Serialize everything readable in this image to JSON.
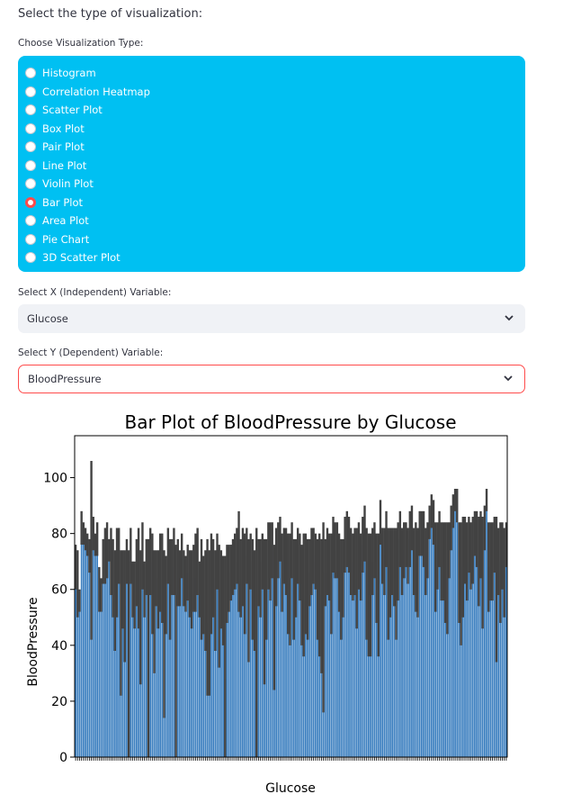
{
  "header": {
    "title": "Select the type of visualization:"
  },
  "viz_type": {
    "label": "Choose Visualization Type:",
    "options": [
      "Histogram",
      "Correlation Heatmap",
      "Scatter Plot",
      "Box Plot",
      "Pair Plot",
      "Line Plot",
      "Violin Plot",
      "Bar Plot",
      "Area Plot",
      "Pie Chart",
      "3D Scatter Plot"
    ],
    "selected": "Bar Plot"
  },
  "x_select": {
    "label": "Select X (Independent) Variable:",
    "value": "Glucose"
  },
  "y_select": {
    "label": "Select Y (Dependent) Variable:",
    "value": "BloodPressure"
  },
  "colors": {
    "panel": "#00c0f2",
    "accent": "#ff4b4b",
    "bar": "#3a7ebf",
    "errbar": "#424242"
  },
  "chart_data": {
    "type": "bar",
    "title": "Bar Plot of BloodPressure by Glucose",
    "xlabel": "Glucose",
    "ylabel": "BloodPressure",
    "ylim": [
      0,
      115
    ],
    "yticks": [
      0,
      20,
      40,
      60,
      80,
      100
    ],
    "values": [
      68,
      62,
      56,
      82,
      80,
      78,
      76,
      72,
      74,
      80,
      76,
      78,
      60,
      58,
      70,
      72,
      74,
      74,
      70,
      64,
      56,
      66,
      72,
      48,
      60,
      54,
      70,
      34,
      72,
      60,
      58,
      66,
      64,
      50,
      72,
      60,
      68,
      36,
      70,
      62,
      52,
      64,
      60,
      66,
      64,
      44,
      58,
      72,
      60,
      68,
      70,
      30,
      66,
      64,
      72,
      64,
      62,
      66,
      62,
      60,
      64,
      66,
      70,
      60,
      60,
      58,
      56,
      50,
      48,
      62,
      64,
      56,
      70,
      54,
      60,
      56,
      28,
      62,
      64,
      66,
      68,
      70,
      72,
      70,
      64,
      68,
      62,
      72,
      56,
      70,
      60,
      56,
      20,
      66,
      64,
      70,
      52,
      60,
      72,
      70,
      74,
      50,
      68,
      74,
      78,
      66,
      72,
      70,
      62,
      60,
      74,
      60,
      64,
      72,
      68,
      58,
      58,
      62,
      60,
      66,
      70,
      72,
      70,
      60,
      58,
      54,
      50,
      66,
      70,
      68,
      62,
      76,
      74,
      74,
      66,
      60,
      64,
      76,
      78,
      76,
      70,
      68,
      70,
      64,
      72,
      68,
      76,
      80,
      62,
      58,
      58,
      70,
      74,
      64,
      58,
      84,
      72,
      70,
      78,
      62,
      66,
      70,
      68,
      62,
      70,
      78,
      70,
      74,
      76,
      72,
      78,
      82,
      70,
      68,
      66,
      80,
      80,
      78,
      70,
      74,
      84,
      88,
      84,
      68,
      72,
      78,
      70,
      70,
      66,
      64,
      74,
      82,
      88,
      92,
      90,
      66,
      62,
      68,
      74,
      70,
      76,
      72,
      74,
      80,
      78,
      70,
      76,
      66,
      82,
      92,
      68,
      70,
      70,
      76,
      60,
      70,
      66,
      72,
      66,
      76
    ],
    "errors": [
      8,
      12,
      4,
      6,
      4,
      4,
      4,
      6,
      32,
      6,
      4,
      6,
      8,
      6,
      8,
      10,
      10,
      4,
      12,
      14,
      18,
      16,
      10,
      26,
      14,
      20,
      8,
      40,
      10,
      10,
      12,
      12,
      18,
      24,
      12,
      10,
      10,
      42,
      12,
      18,
      22,
      10,
      14,
      14,
      16,
      30,
      14,
      10,
      18,
      10,
      12,
      46,
      12,
      10,
      8,
      10,
      10,
      10,
      12,
      14,
      12,
      14,
      12,
      10,
      18,
      14,
      18,
      28,
      26,
      18,
      14,
      18,
      10,
      22,
      14,
      16,
      44,
      14,
      12,
      10,
      10,
      10,
      10,
      18,
      14,
      14,
      18,
      10,
      22,
      10,
      18,
      18,
      62,
      12,
      14,
      10,
      26,
      18,
      12,
      14,
      10,
      26,
      14,
      10,
      8,
      14,
      10,
      12,
      18,
      20,
      10,
      18,
      14,
      10,
      12,
      18,
      22,
      18,
      18,
      12,
      12,
      10,
      10,
      18,
      22,
      24,
      34,
      12,
      12,
      12,
      18,
      10,
      10,
      10,
      14,
      18,
      14,
      10,
      10,
      10,
      12,
      12,
      12,
      18,
      12,
      12,
      10,
      10,
      20,
      22,
      22,
      12,
      10,
      16,
      22,
      8,
      10,
      12,
      10,
      20,
      16,
      12,
      14,
      20,
      14,
      10,
      12,
      10,
      8,
      10,
      10,
      8,
      12,
      16,
      16,
      8,
      8,
      10,
      12,
      10,
      6,
      6,
      8,
      16,
      12,
      10,
      14,
      14,
      18,
      20,
      10,
      8,
      6,
      4,
      6,
      18,
      22,
      18,
      12,
      14,
      10,
      12,
      12,
      8,
      10,
      16,
      12,
      20,
      8,
      4,
      16,
      14,
      14,
      10,
      26,
      12,
      18,
      12,
      16,
      8
    ]
  }
}
